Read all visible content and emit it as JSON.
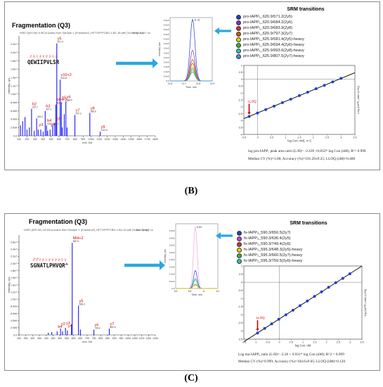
{
  "panel_b": {
    "label": "(B)",
    "title": "Fragmentation (Q3)",
    "sequence": "QEWIIPVLSR",
    "scan_header": "+MS2 (620.99) 5 MCA scans from Sample 1 (Fraction#3_HFTGFPPCBS-1-B2-15.wiff (Turbo Spray)",
    "scan_max": "Max. 2.3e7 cs",
    "chrom_xlabel": "Time, min",
    "chrom_peak_label": "11.31",
    "srm_title": "SRM transitions",
    "srm_legend": [
      "pro-IAPP₁_620.9/571.2(2y5)",
      "pro-IAPP₁_620.9/684.2(2y6)",
      "pro-IAPP₁_620.9/683.9(2y8)",
      "pro-IAPP₁_620.9/797.3(2y7)",
      "pro-IAPP₁_625.9/581.4(2y5)-heavy",
      "pro-IAPP₁_625.9/694.4(2y6)-heavy",
      "pro-IAPP₁_625.9/993.6(2y8)-heavy",
      "pro-IAPP₁_625.9/807.5(2y7)-heavy"
    ],
    "calib_ylabel": "Log (IAPP₁ ratio (L/H))",
    "calib_xlabel": "log Con. nM), n=3",
    "lloq_label": "LLOQ",
    "equation": "log pro-IAPP₁ peak area ratio (L/H)= -2.439 +0.832* log Con (nM); R²= 0.998",
    "stats": "Median CV (%)=3.00; Accuracy (%)=101.29±9.25; LLOQ (nM)=0.488"
  },
  "panel_c": {
    "label": "(C)",
    "title": "Fragmentation (Q3)",
    "sequence": "SGNATLPHVQR^",
    "scan_header": "+MS2 (590.32) 18 MCA scans from Sample 1 (Fraction#3_HFTGFPPCBS-1-B2-15.wiff (Turbo Spray)",
    "scan_max": "Max. 2.6e7 cs",
    "chrom_xlabel": "Time, min",
    "chrom_peak_label": "5.83",
    "srm_title": "SRM transitions",
    "srm_legend": [
      "fs-IAPP₂_590.3/650.5(2y7)",
      "fs-IAPP₂_590.3/636.4(2y5)",
      "fs-IAPP₂_590.3/749.4(2y6)",
      "fs-IAPP₂_595.3/648.3(2y5)-heavy",
      "fs-IAPP₂_595.3/660.5(2y7)-heavy",
      "fs-IAPP₂_595.3/759.5(2y6)-heavy"
    ],
    "calib_ylabel": "log (IAPP₂ ratio (L/H))",
    "calib_xlabel": "log Con. nM",
    "lloq_label": "LLOQ",
    "equation": "Log ma-IAPP₂ ratio (L/H)= -2.26 + 0.931* log Con (nM); R^2 = 0.999",
    "stats": "Median CV (%)=0.999; Accuracy (%)=104.6±9.05; LLOQ (nM)=0.120"
  },
  "colors": {
    "spectrum": "#1a1aff",
    "annotation": "#d40000",
    "arrow": "#2aa8e0",
    "fit_line": "#000000",
    "points": "#1a3fd6",
    "lloq": "#cc0000",
    "legend_b": [
      "#1f3fc8",
      "#7b2fbf",
      "#c0392b",
      "#d35400",
      "#e5d200",
      "#36b236",
      "#2ec4b6",
      "#4a8ad6"
    ],
    "legend_c": [
      "#1f3fc8",
      "#c93dbf",
      "#c0392b",
      "#e5d200",
      "#36b236",
      "#2ec4b6"
    ]
  },
  "chart_data": [
    {
      "id": "B-ms2",
      "type": "bar",
      "xlabel": "m/z, Da",
      "ylabel": "Intensity, cps",
      "xlim": [
        100,
        1800
      ],
      "ylim": [
        0,
        24000000.0
      ],
      "x_ticks": [
        100,
        200,
        300,
        400,
        500,
        600,
        700,
        800,
        900,
        1000,
        1100,
        1200,
        1300,
        1400,
        1500,
        1600,
        1700,
        1800
      ],
      "y_ticks": [
        {
          "v": 0,
          "t": "0.0"
        },
        {
          "v": 2000000.0,
          "t": "2.0e6"
        },
        {
          "v": 4000000.0,
          "t": "4.0e6"
        },
        {
          "v": 6000000.0,
          "t": "6.0e6"
        },
        {
          "v": 8000000.0,
          "t": "8.0e6"
        },
        {
          "v": 10000000.0,
          "t": "1.0e7"
        },
        {
          "v": 12000000.0,
          "t": "1.2e7"
        },
        {
          "v": 14000000.0,
          "t": "1.4e7"
        },
        {
          "v": 16000000.0,
          "t": "1.6e7"
        },
        {
          "v": 18000000.0,
          "t": "1.8e7"
        },
        {
          "v": 20000000.0,
          "t": "2.0e7"
        },
        {
          "v": 22000000.0,
          "t": "2.2e7"
        }
      ],
      "peaks": [
        {
          "mz": 120,
          "i": 2500000.0
        },
        {
          "mz": 147,
          "i": 3500000.0
        },
        {
          "mz": 175,
          "i": 4500000.0
        },
        {
          "mz": 200,
          "i": 1500000.0
        },
        {
          "mz": 230,
          "i": 2000000.0
        },
        {
          "mz": 257.1,
          "i": 6500000.0
        },
        {
          "mz": 290,
          "i": 1200000.0
        },
        {
          "mz": 320.2,
          "i": 4200000.0
        },
        {
          "mz": 340,
          "i": 1500000.0
        },
        {
          "mz": 372,
          "i": 1500000.0
        },
        {
          "mz": 401,
          "i": 1000000.0
        },
        {
          "mz": 427,
          "i": 6000000.0
        },
        {
          "mz": 443.3,
          "i": 2500000.0
        },
        {
          "mz": 458,
          "i": 1200000.0
        },
        {
          "mz": 488,
          "i": 1500000.0
        },
        {
          "mz": 520,
          "i": 2500000.0
        },
        {
          "mz": 545,
          "i": 3000000.0
        },
        {
          "mz": 560.3,
          "i": 7500000.0
        },
        {
          "mz": 571.4,
          "i": 22200000.0
        },
        {
          "mz": 613.8,
          "i": 13500000.0
        },
        {
          "mz": 628,
          "i": 8000000.0
        },
        {
          "mz": 640,
          "i": 2000000.0
        },
        {
          "mz": 665,
          "i": 5200000.0
        },
        {
          "mz": 684.5,
          "i": 8200000.0
        },
        {
          "mz": 700,
          "i": 2000000.0
        },
        {
          "mz": 797.3,
          "i": 5000000.0
        },
        {
          "mz": 983.6,
          "i": 5500000.0
        },
        {
          "mz": 1112.6,
          "i": 1000000.0
        }
      ],
      "peak_labels": [
        {
          "mz": 571.4,
          "t": "571.4"
        },
        {
          "mz": 613.8,
          "t": "613.8"
        },
        {
          "mz": 560.3,
          "t": "560.3"
        },
        {
          "mz": 684.5,
          "t": "684.5"
        },
        {
          "mz": 257.1,
          "t": "257.1"
        },
        {
          "mz": 320.2,
          "t": "320.2"
        },
        {
          "mz": 427,
          "t": "427.2"
        },
        {
          "mz": 443.3,
          "t": "443.3"
        },
        {
          "mz": 797.3,
          "t": "797.3"
        },
        {
          "mz": 983.6,
          "t": "983.6"
        },
        {
          "mz": 1112.6,
          "t": "1112.6"
        },
        {
          "mz": 520,
          "t": "552.3"
        }
      ],
      "ion_labels": [
        {
          "mz": 571.4,
          "i": 22200000.0,
          "t": "y5"
        },
        {
          "mz": 613.8,
          "i": 13500000.0,
          "t": "y10+2"
        },
        {
          "mz": 684.5,
          "i": 8200000.0,
          "t": "y6"
        },
        {
          "mz": 560.3,
          "i": 7500000.0,
          "t": "MH+2"
        },
        {
          "mz": 257.1,
          "i": 6500000.0,
          "t": "b2"
        },
        {
          "mz": 427,
          "i": 6000000.0,
          "t": "b3"
        },
        {
          "mz": 443.3,
          "i": 2500000.0,
          "t": "b4"
        },
        {
          "mz": 340,
          "i": 1500000.0,
          "t": "y3"
        },
        {
          "mz": 488,
          "i": 1500000.0,
          "t": "y4"
        },
        {
          "mz": 560,
          "i": 3000000.0,
          "t": "b5"
        },
        {
          "mz": 628,
          "i": 8000000.0,
          "t": "b5"
        },
        {
          "mz": 797.3,
          "i": 5000000.0,
          "t": "y7"
        },
        {
          "mz": 983.6,
          "i": 5500000.0,
          "t": "y8"
        },
        {
          "mz": 1112.6,
          "i": 1000000.0,
          "t": "y9"
        }
      ]
    },
    {
      "id": "B-xic",
      "type": "line",
      "xlabel": "Time, min",
      "ylabel": "Intensity, cps",
      "xlim": [
        11.6,
        11.9
      ],
      "ylim": [
        0,
        680000.0
      ],
      "x_ticks": [
        11.6,
        11.7,
        11.8,
        11.9
      ],
      "y_ticks": [
        {
          "v": 0,
          "t": "0.0"
        },
        {
          "v": 50000.0,
          "t": "5.0e4"
        },
        {
          "v": 100000.0,
          "t": "1.0e5"
        },
        {
          "v": 150000.0,
          "t": "1.5e5"
        },
        {
          "v": 200000.0,
          "t": "2.0e5"
        },
        {
          "v": 250000.0,
          "t": "2.5e5"
        },
        {
          "v": 300000.0,
          "t": "3.0e5"
        },
        {
          "v": 350000.0,
          "t": "3.5e5"
        },
        {
          "v": 400000.0,
          "t": "4.0e5"
        },
        {
          "v": 450000.0,
          "t": "4.5e5"
        },
        {
          "v": 500000.0,
          "t": "5.0e5"
        },
        {
          "v": 550000.0,
          "t": "5.5e5"
        },
        {
          "v": 600000.0,
          "t": "6.0e5"
        },
        {
          "v": 650000.0,
          "t": "6.5e5"
        }
      ],
      "peak_center": 11.76,
      "peak_width": 0.04,
      "series": [
        {
          "color": "#1f3fc8",
          "apex": 660000.0
        },
        {
          "color": "#7b2fbf",
          "apex": 330000.0
        },
        {
          "color": "#c0392b",
          "apex": 230000.0
        },
        {
          "color": "#d35400",
          "apex": 190000.0
        },
        {
          "color": "#e5d200",
          "apex": 150000.0
        },
        {
          "color": "#36b236",
          "apex": 135000.0
        },
        {
          "color": "#2ec4b6",
          "apex": 115000.0
        },
        {
          "color": "#4a8ad6",
          "apex": 95000.0
        }
      ]
    },
    {
      "id": "B-calib",
      "type": "scatter",
      "xlabel": "log Con. nM), n=3",
      "ylabel": "Log (IAPP₁ ratio (L/H))",
      "xlim": [
        -0.5,
        3.5
      ],
      "ylim": [
        -4.0,
        1.0
      ],
      "x_ticks": [
        -0.5,
        0,
        0.5,
        1,
        1.5,
        2,
        2.5,
        3,
        3.5
      ],
      "y_ticks": [
        -4,
        -3.5,
        -3,
        -2.5,
        -2,
        -1.5,
        -1,
        -0.5,
        0,
        0.5,
        1
      ],
      "x": [
        -0.31,
        -0.01,
        0.29,
        0.59,
        0.89,
        1.19,
        1.5,
        1.8,
        2.1,
        2.4,
        2.7,
        3.0
      ],
      "y": [
        -2.7,
        -2.45,
        -2.2,
        -1.95,
        -1.7,
        -1.45,
        -1.19,
        -0.94,
        -0.69,
        -0.44,
        -0.19,
        0.06
      ],
      "fit": {
        "intercept": -2.439,
        "slope": 0.832
      },
      "lloq_x": -0.31
    },
    {
      "id": "C-ms2",
      "type": "bar",
      "xlabel": "m/z, Da",
      "ylabel": "Intensity, cps",
      "xlim": [
        200,
        1200
      ],
      "ylim": [
        0,
        28000000.0
      ],
      "x_ticks": [
        200,
        250,
        300,
        350,
        400,
        450,
        500,
        550,
        600,
        650,
        700,
        750,
        800,
        850,
        900,
        950,
        1000,
        1050,
        1100,
        1150,
        1200
      ],
      "y_ticks": [
        {
          "v": 0,
          "t": "0.0"
        },
        {
          "v": 2000000.0,
          "t": "2.0e6"
        },
        {
          "v": 4000000.0,
          "t": "4.0e6"
        },
        {
          "v": 6000000.0,
          "t": "6.0e6"
        },
        {
          "v": 8000000.0,
          "t": "8.0e6"
        },
        {
          "v": 10000000.0,
          "t": "1.0e7"
        },
        {
          "v": 12000000.0,
          "t": "1.2e7"
        },
        {
          "v": 14000000.0,
          "t": "1.4e7"
        },
        {
          "v": 16000000.0,
          "t": "1.6e7"
        },
        {
          "v": 18000000.0,
          "t": "1.8e7"
        },
        {
          "v": 20000000.0,
          "t": "2.0e7"
        },
        {
          "v": 22000000.0,
          "t": "2.2e7"
        },
        {
          "v": 24000000.0,
          "t": "2.4e7"
        },
        {
          "v": 26000000.0,
          "t": "2.6e7"
        }
      ],
      "peaks": [
        {
          "mz": 415,
          "i": 600000.0
        },
        {
          "mz": 440,
          "i": 800000.0
        },
        {
          "mz": 480,
          "i": 1000000.0
        },
        {
          "mz": 505,
          "i": 1800000.0
        },
        {
          "mz": 520,
          "i": 1000000.0
        },
        {
          "mz": 541,
          "i": 2000000.0
        },
        {
          "mz": 555,
          "i": 1200000.0
        },
        {
          "mz": 585,
          "i": 3000000.0
        },
        {
          "mz": 590.5,
          "i": 25800000.0
        },
        {
          "mz": 636.4,
          "i": 8200000.0
        },
        {
          "mz": 650.5,
          "i": 1500000.0
        },
        {
          "mz": 749.4,
          "i": 1500000.0
        },
        {
          "mz": 862.5,
          "i": 1800000.0
        }
      ],
      "peak_labels": [
        {
          "mz": 590.5,
          "t": "590.5"
        },
        {
          "mz": 636.4,
          "t": "636.4"
        },
        {
          "mz": 749.4,
          "t": "749.4"
        },
        {
          "mz": 862.5,
          "t": "862.5"
        }
      ],
      "ion_labels": [
        {
          "mz": 590.5,
          "i": 25800000.0,
          "t": "MH+2"
        },
        {
          "mz": 636.4,
          "i": 8200000.0,
          "t": "y5"
        },
        {
          "mz": 749.4,
          "i": 1500000.0,
          "t": "y6"
        },
        {
          "mz": 862.5,
          "i": 1800000.0,
          "t": "y7"
        },
        {
          "mz": 505,
          "i": 1800000.0,
          "t": "y2"
        },
        {
          "mz": 541,
          "i": 2000000.0,
          "t": "y3"
        },
        {
          "mz": 480,
          "i": 1000000.0,
          "t": "b4"
        },
        {
          "mz": 555,
          "i": 1200000.0,
          "t": "y4"
        }
      ]
    },
    {
      "id": "C-xic",
      "type": "line",
      "xlabel": "Time, min",
      "ylabel": "Intensity, cps",
      "xlim": [
        5.6,
        6.2
      ],
      "ylim": [
        0,
        450000.0
      ],
      "x_ticks": [
        5.6,
        5.8,
        6.0,
        6.2
      ],
      "y_ticks": [
        {
          "v": 0,
          "t": "0.0"
        },
        {
          "v": 50000.0,
          "t": "5.0e4"
        },
        {
          "v": 100000.0,
          "t": "1.0e5"
        },
        {
          "v": 150000.0,
          "t": "1.5e5"
        },
        {
          "v": 200000.0,
          "t": "2.0e5"
        },
        {
          "v": 250000.0,
          "t": "2.5e5"
        },
        {
          "v": 300000.0,
          "t": "3.0e5"
        },
        {
          "v": 350000.0,
          "t": "3.5e5"
        },
        {
          "v": 400000.0,
          "t": "4.0e5"
        }
      ],
      "peak_center": 5.88,
      "peak_width": 0.06,
      "series": [
        {
          "color": "#f5a3d8",
          "apex": 430000.0
        },
        {
          "color": "#1f3fc8",
          "apex": 125000.0
        },
        {
          "color": "#36b236",
          "apex": 70000.0
        },
        {
          "color": "#2ec4b6",
          "apex": 60000.0
        },
        {
          "color": "#c0392b",
          "apex": 30000.0
        },
        {
          "color": "#e5d200",
          "apex": 25000.0
        }
      ]
    },
    {
      "id": "C-calib",
      "type": "scatter",
      "xlabel": "log Con. nM",
      "ylabel": "log (IAPP₂ ratio (L/H))",
      "xlim": [
        -1.5,
        3.5
      ],
      "ylim": [
        -3.5,
        1.0
      ],
      "x_ticks": [
        -1.5,
        -1,
        -0.5,
        0,
        0.5,
        1,
        1.5,
        2,
        2.5,
        3,
        3.5
      ],
      "y_ticks": [
        -3.5,
        -3,
        -2.5,
        -2,
        -1.5,
        -1,
        -0.5,
        0,
        0.5,
        1
      ],
      "x": [
        -0.92,
        -0.62,
        -0.32,
        -0.02,
        0.28,
        0.58,
        0.88,
        1.19,
        1.49,
        1.79,
        2.09,
        2.39,
        2.69,
        2.99
      ],
      "y": [
        -3.12,
        -2.84,
        -2.56,
        -2.28,
        -2.0,
        -1.72,
        -1.44,
        -1.15,
        -0.87,
        -0.59,
        -0.31,
        -0.03,
        0.24,
        0.52
      ],
      "fit": {
        "intercept": -2.26,
        "slope": 0.931
      },
      "lloq_x": -0.92
    }
  ]
}
